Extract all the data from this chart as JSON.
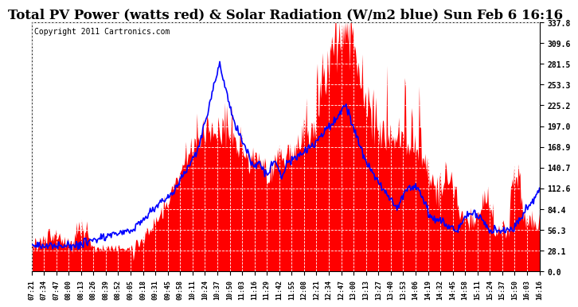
{
  "title": "Total PV Power (watts red) & Solar Radiation (W/m2 blue) Sun Feb 6 16:16",
  "copyright": "Copyright 2011 Cartronics.com",
  "ymin": 0.0,
  "ymax": 337.8,
  "yticks": [
    0.0,
    28.1,
    56.3,
    84.4,
    112.6,
    140.7,
    168.9,
    197.0,
    225.2,
    253.3,
    281.5,
    309.6,
    337.8
  ],
  "ytick_labels": [
    "0.0",
    "28.1",
    "56.3",
    "84.4",
    "112.6",
    "140.7",
    "168.9",
    "197.0",
    "225.2",
    "253.3",
    "281.5",
    "309.6",
    "337.8"
  ],
  "xtick_labels": [
    "07:21",
    "07:34",
    "07:47",
    "08:00",
    "08:13",
    "08:26",
    "08:39",
    "08:52",
    "09:05",
    "09:18",
    "09:31",
    "09:45",
    "09:58",
    "10:11",
    "10:24",
    "10:37",
    "10:50",
    "11:03",
    "11:16",
    "11:29",
    "11:42",
    "11:55",
    "12:08",
    "12:21",
    "12:34",
    "12:47",
    "13:00",
    "13:13",
    "13:27",
    "13:40",
    "13:53",
    "14:06",
    "14:19",
    "14:32",
    "14:45",
    "14:58",
    "15:11",
    "15:24",
    "15:37",
    "15:50",
    "16:03",
    "16:16"
  ],
  "background_color": "#ffffff",
  "plot_bg_color": "#ffffff",
  "fill_color": "#ff0000",
  "line_color": "#0000ff",
  "title_fontsize": 12,
  "copyright_fontsize": 7
}
